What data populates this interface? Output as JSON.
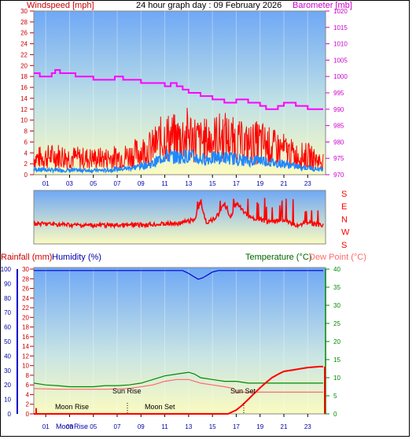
{
  "header": {
    "title": "24 hour graph day : 09 February 2026",
    "left_label": "Windspeed [mph]",
    "right_label": "Barometer [mb]"
  },
  "direction_labels": [
    "S",
    "E",
    "N",
    "W",
    "S"
  ],
  "bottom_header": {
    "rain_label": "Rainfall (mm)",
    "humidity_label": "Humidity (%)",
    "temp_label": "Temperature (°C)",
    "dew_label": "Dew Point (°C)"
  },
  "annotations": {
    "moon_rise": "Moon Rise",
    "moon_set": "Moon Set",
    "sun_rise": "Sun Rise",
    "sun_set": "Sun Set",
    "moon_rise_axis": "Moon",
    "rise_axis": "Rise"
  },
  "colors": {
    "wind": "#ff0000",
    "gust": "#ff0000",
    "avg_wind": "#1e88ff",
    "barometer": "#ff00ff",
    "direction": "#ff0000",
    "humidity": "#0000cc",
    "temperature": "#008800",
    "dewpoint": "#ff6a6a",
    "rain": "#ff0000",
    "sky_top": "#6fa8f5",
    "sky_bottom": "#fbfbc0"
  },
  "chart_data": [
    {
      "type": "line",
      "title": "24 hour graph day : 09 February 2026",
      "x_ticks": [
        "01",
        "03",
        "05",
        "07",
        "09",
        "11",
        "13",
        "15",
        "17",
        "19",
        "21",
        "23"
      ],
      "xlim": [
        0,
        24.5
      ],
      "ylabel": "Windspeed [mph]",
      "ylim": [
        0,
        30
      ],
      "y_ticks": [
        0,
        2,
        4,
        6,
        8,
        10,
        12,
        14,
        16,
        18,
        20,
        22,
        24,
        26,
        28,
        30
      ],
      "y2label": "Barometer [mb]",
      "y2lim": [
        970,
        1020
      ],
      "y2_ticks": [
        970,
        975,
        980,
        985,
        990,
        995,
        1000,
        1005,
        1010,
        1015,
        1020
      ],
      "series": [
        {
          "name": "Barometer [mb]",
          "axis": "right",
          "x": [
            0,
            0.5,
            1.2,
            1.5,
            1.8,
            2.2,
            3.0,
            3.5,
            4.8,
            5.0,
            5.3,
            6.0,
            6.5,
            6.8,
            7.5,
            9.0,
            10.0,
            11.0,
            11.5,
            12.0,
            12.5,
            13.0,
            14.0,
            15.0,
            15.5,
            16.0,
            17.0,
            18.0,
            19.0,
            19.5,
            20.0,
            20.5,
            21.0,
            22.0,
            23.0,
            24.3
          ],
          "values": [
            1001,
            1000,
            1000,
            1001,
            1002,
            1001,
            1001,
            1000,
            1000,
            999,
            999,
            999,
            999,
            1000,
            999,
            998,
            998,
            997,
            998,
            997,
            996,
            995,
            994,
            993,
            993,
            992,
            993,
            992,
            991,
            990,
            990,
            991,
            992,
            991,
            990,
            990
          ]
        },
        {
          "name": "Gust",
          "axis": "left",
          "x": [
            0,
            2,
            4,
            6,
            8,
            10,
            11,
            12,
            13,
            14,
            15,
            16,
            17,
            18,
            19,
            20,
            21,
            22,
            23,
            24
          ],
          "values": [
            3,
            3.5,
            3,
            3,
            3.5,
            5,
            7,
            6.5,
            7.5,
            6,
            6.5,
            7,
            6,
            5.5,
            6,
            5,
            4.5,
            3.5,
            3.5,
            2.5
          ]
        },
        {
          "name": "Average",
          "axis": "left",
          "x": [
            0,
            2,
            4,
            6,
            8,
            10,
            11,
            12,
            13,
            14,
            15,
            16,
            17,
            18,
            19,
            20,
            21,
            22,
            23,
            24
          ],
          "values": [
            1,
            0.8,
            0.8,
            0.8,
            1.2,
            2,
            3.5,
            3.2,
            3.5,
            2.8,
            3,
            3.2,
            2.8,
            2.5,
            2.8,
            2.2,
            2,
            1.5,
            1.3,
            1
          ]
        }
      ]
    },
    {
      "type": "line",
      "title": "Wind direction",
      "y_ticks": [
        "S",
        "E",
        "N",
        "W",
        "S"
      ],
      "series": [
        {
          "name": "Direction",
          "x": [
            0,
            4,
            8,
            12,
            13.5,
            14,
            14.5,
            15,
            15.5,
            16,
            16.5,
            17,
            17.5,
            18,
            19,
            20,
            21,
            22,
            23,
            24
          ],
          "values": [
            0.62,
            0.65,
            0.65,
            0.62,
            0.55,
            0.2,
            0.6,
            0.55,
            0.45,
            0.25,
            0.5,
            0.25,
            0.35,
            0.5,
            0.55,
            0.6,
            0.55,
            0.65,
            0.6,
            0.65
          ]
        }
      ]
    },
    {
      "type": "line",
      "x_ticks": [
        "01",
        "03",
        "05",
        "07",
        "09",
        "11",
        "13",
        "15",
        "17",
        "19",
        "21",
        "23"
      ],
      "xlim": [
        0,
        24.5
      ],
      "ylabel": "Rainfall (mm)",
      "ylim": [
        0,
        30
      ],
      "y_ticks": [
        0,
        2,
        4,
        6,
        8,
        10,
        12,
        14,
        16,
        18,
        20,
        22,
        24,
        26,
        28,
        30
      ],
      "humidity_ticks": [
        0,
        10,
        20,
        30,
        40,
        50,
        60,
        70,
        80,
        90,
        100
      ],
      "y2label": "Temperature (°C)",
      "y2lim": [
        0,
        40
      ],
      "y2_ticks": [
        0,
        5,
        10,
        15,
        20,
        25,
        30,
        35,
        40
      ],
      "series": [
        {
          "name": "Humidity (%)",
          "axis": "humidity",
          "x": [
            0,
            12.5,
            13,
            13.4,
            13.8,
            14.2,
            14.6,
            15,
            15.5,
            24.3
          ],
          "values": [
            99,
            99,
            97,
            95,
            93,
            94,
            96,
            98,
            99,
            99
          ]
        },
        {
          "name": "Temperature (°C)",
          "axis": "right",
          "x": [
            0,
            1,
            2,
            3,
            4,
            5,
            6,
            7,
            8,
            9,
            10,
            11,
            12,
            13,
            13.5,
            14,
            15,
            16,
            17,
            18,
            19,
            20,
            21,
            22,
            23,
            24.3
          ],
          "values": [
            8.5,
            8,
            7.8,
            7.5,
            7.5,
            7.5,
            7.8,
            7.8,
            8,
            8.5,
            9.5,
            10.5,
            11,
            11.5,
            11,
            10,
            9.5,
            9,
            9,
            8.5,
            8.5,
            8.5,
            8.5,
            8.5,
            8.5,
            8.5
          ]
        },
        {
          "name": "Dew Point (°C)",
          "axis": "right",
          "x": [
            0,
            2,
            4,
            6,
            8,
            10,
            11,
            12,
            13,
            14,
            15,
            16,
            16.8,
            17,
            17.5,
            18,
            24.3
          ],
          "values": [
            7,
            6.8,
            6.8,
            6.8,
            7,
            8,
            9,
            9.5,
            9.5,
            8.5,
            8,
            7.5,
            7,
            6,
            6,
            6,
            6
          ]
        },
        {
          "name": "Rainfall (mm)",
          "axis": "left",
          "x": [
            0,
            16.3,
            17,
            17.5,
            18,
            18.5,
            19,
            19.5,
            20,
            20.5,
            21,
            22,
            23,
            24,
            24.3
          ],
          "values": [
            0,
            0,
            0.8,
            1.8,
            3,
            4.2,
            5.4,
            6.5,
            7.5,
            8.2,
            8.8,
            9.2,
            9.6,
            9.8,
            9.8
          ]
        }
      ]
    }
  ]
}
